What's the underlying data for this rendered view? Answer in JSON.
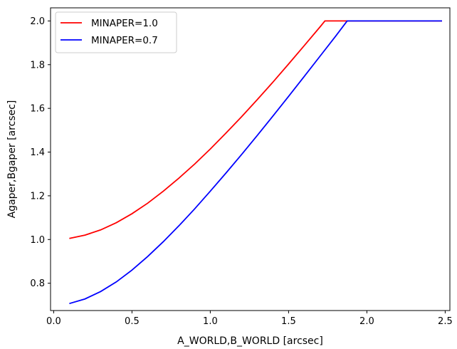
{
  "chart_data": {
    "type": "line",
    "title": "",
    "xlabel": "A_WORLD,B_WORLD [arcsec]",
    "ylabel": "Agaper,Bgaper [arcsec]",
    "xlim": [
      -0.02,
      2.53
    ],
    "ylim": [
      0.675,
      2.06
    ],
    "xticks": [
      0.0,
      0.5,
      1.0,
      1.5,
      2.0,
      2.5
    ],
    "xtick_labels": [
      "0.0",
      "0.5",
      "1.0",
      "1.5",
      "2.0",
      "2.5"
    ],
    "yticks": [
      0.8,
      1.0,
      1.2,
      1.4,
      1.6,
      1.8,
      2.0
    ],
    "ytick_labels": [
      "0.8",
      "1.0",
      "1.2",
      "1.4",
      "1.6",
      "1.8",
      "2.0"
    ],
    "grid": false,
    "legend_position": "top-left",
    "series": [
      {
        "name": "MINAPER=1.0",
        "color": "#ff0000",
        "x": [
          0.1,
          0.2,
          0.3,
          0.4,
          0.5,
          0.6,
          0.7,
          0.8,
          0.9,
          1.0,
          1.1,
          1.2,
          1.3,
          1.4,
          1.5,
          1.6,
          1.7,
          1.732,
          1.8,
          1.9,
          2.0,
          2.1,
          2.2,
          2.3,
          2.4,
          2.48
        ],
        "y": [
          1.005,
          1.02,
          1.044,
          1.077,
          1.118,
          1.166,
          1.221,
          1.281,
          1.345,
          1.414,
          1.487,
          1.562,
          1.64,
          1.72,
          1.803,
          1.887,
          1.972,
          2.0,
          2.0,
          2.0,
          2.0,
          2.0,
          2.0,
          2.0,
          2.0,
          2.0
        ]
      },
      {
        "name": "MINAPER=0.7",
        "color": "#0000ff",
        "x": [
          0.1,
          0.2,
          0.3,
          0.4,
          0.5,
          0.6,
          0.7,
          0.8,
          0.9,
          1.0,
          1.1,
          1.2,
          1.3,
          1.4,
          1.5,
          1.6,
          1.7,
          1.8,
          1.874,
          1.9,
          2.0,
          2.1,
          2.2,
          2.3,
          2.4,
          2.48
        ],
        "y": [
          0.707,
          0.728,
          0.762,
          0.806,
          0.86,
          0.922,
          0.99,
          1.063,
          1.14,
          1.221,
          1.304,
          1.389,
          1.476,
          1.565,
          1.655,
          1.746,
          1.838,
          1.93,
          2.0,
          2.0,
          2.0,
          2.0,
          2.0,
          2.0,
          2.0,
          2.0
        ]
      }
    ]
  }
}
